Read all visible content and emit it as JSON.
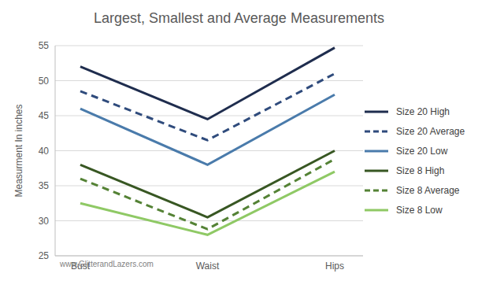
{
  "chart_data": {
    "type": "line",
    "title": "Largest, Smallest and Average Measurements",
    "y_label": "Measurment In inches",
    "annotation": "www.GlitterandLazers.com",
    "categories": [
      "Bust",
      "Waist",
      "Hips"
    ],
    "series": [
      {
        "name": "Size 20 High",
        "color": "#1f2d4e",
        "line_style": "solid",
        "values": [
          52,
          44.5,
          54.7
        ]
      },
      {
        "name": "Size 20 Average",
        "color": "#2f4b7c",
        "line_style": "dashed",
        "values": [
          48.5,
          41.5,
          51
        ]
      },
      {
        "name": "Size 20 Low",
        "color": "#4a7bab",
        "line_style": "solid",
        "values": [
          46,
          38,
          48
        ]
      },
      {
        "name": "Size 8 High",
        "color": "#385723",
        "line_style": "solid",
        "values": [
          38,
          30.5,
          40
        ]
      },
      {
        "name": "Size 8 Average",
        "color": "#548235",
        "line_style": "dashed",
        "values": [
          36,
          28.8,
          38.8
        ]
      },
      {
        "name": "Size 8 Low",
        "color": "#8fc965",
        "line_style": "solid",
        "values": [
          32.5,
          28,
          37
        ]
      }
    ],
    "ylim": [
      25,
      55
    ],
    "yticks": [
      25,
      30,
      35,
      40,
      45,
      50,
      55
    ],
    "grid": true,
    "legend": "right"
  }
}
